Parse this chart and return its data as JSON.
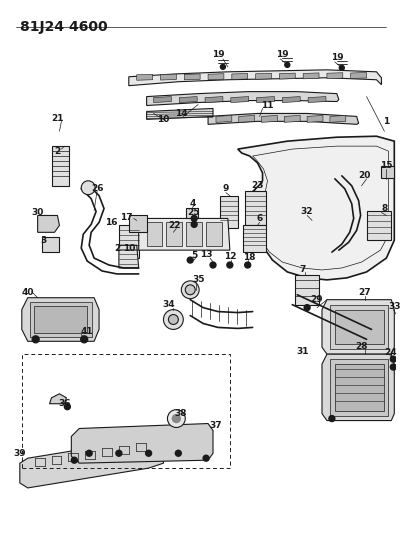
{
  "title": "81J24 4600",
  "bg_color": "#ffffff",
  "line_color": "#1a1a1a",
  "title_fontsize": 10,
  "fig_width": 4.0,
  "fig_height": 5.33,
  "dpi": 100
}
